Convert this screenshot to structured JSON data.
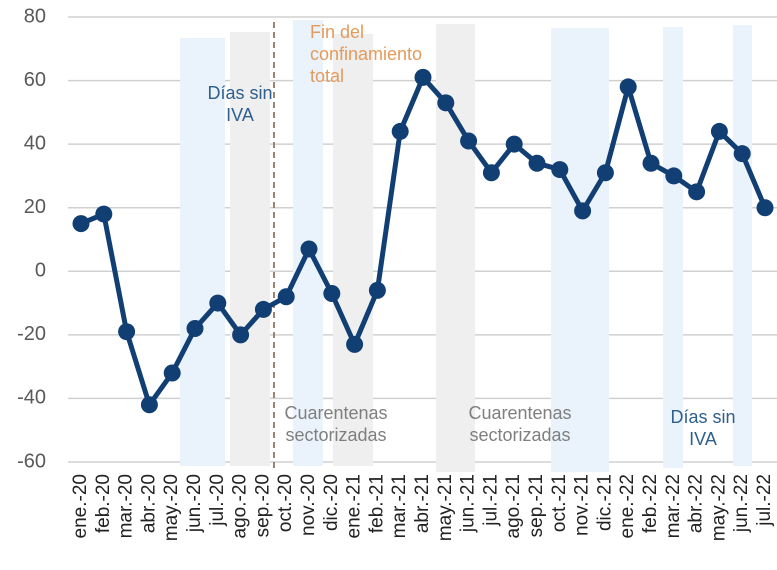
{
  "chart_data": {
    "type": "line",
    "categories": [
      "ene.-20",
      "feb.-20",
      "mar.-20",
      "abr.-20",
      "may.-20",
      "jun.-20",
      "jul.-20",
      "ago.-20",
      "sep.-20",
      "oct.-20",
      "nov.-20",
      "dic.-20",
      "ene.-21",
      "feb.-21",
      "mar.-21",
      "abr.-21",
      "may.-21",
      "jun.-21",
      "jul.-21",
      "ago.-21",
      "sep.-21",
      "oct.-21",
      "nov.-21",
      "dic.-21",
      "ene.-22",
      "feb.-22",
      "mar.-22",
      "abr.-22",
      "may.-22",
      "jun.-22",
      "jul.-22"
    ],
    "values": [
      15,
      18,
      -19,
      -42,
      -32,
      -18,
      -10,
      -20,
      -12,
      -8,
      7,
      -7,
      -23,
      -6,
      44,
      61,
      53,
      41,
      31,
      40,
      34,
      32,
      19,
      31,
      58,
      34,
      30,
      25,
      44,
      37,
      20
    ],
    "color": "#123f73",
    "ylim": [
      -60,
      80
    ],
    "yticks": [
      -60,
      -40,
      -20,
      0,
      20,
      40,
      60,
      80
    ],
    "grid": true,
    "annotations": [
      {
        "lines": [
          "Días sin",
          "IVA"
        ],
        "color": "#2e5f8e"
      },
      {
        "lines": [
          "Fin del",
          "confinamiento",
          "total"
        ],
        "color": "#e39a5a"
      },
      {
        "lines": [
          "Cuarentenas",
          "sectorizadas"
        ],
        "color": "#7f7f7f"
      },
      {
        "lines": [
          "Cuarentenas",
          "sectorizadas"
        ],
        "color": "#7f7f7f"
      },
      {
        "lines": [
          "Días sin",
          "IVA"
        ],
        "color": "#2e5f8e"
      }
    ]
  }
}
